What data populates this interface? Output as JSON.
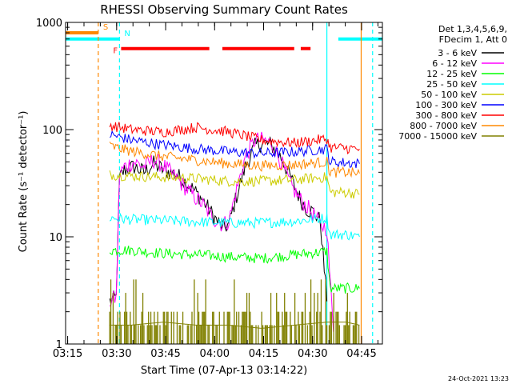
{
  "chart_data": {
    "type": "line",
    "title": "RHESSI Observing Summary Count Rates",
    "xlabel": "Start Time (07-Apr-13 03:14:22)",
    "ylabel": "Count Rate (s⁻¹ detector⁻¹)",
    "y_scale": "log",
    "ylim": [
      1,
      1000
    ],
    "y_ticks": [
      {
        "value": 1,
        "label": "1"
      },
      {
        "value": 10,
        "label": "10"
      },
      {
        "value": 100,
        "label": "100"
      },
      {
        "value": 1000,
        "label": "1000"
      }
    ],
    "x_range_minutes": [
      0,
      97
    ],
    "x_ticks": [
      {
        "value": 0.63,
        "label": "03:15"
      },
      {
        "value": 15.63,
        "label": "03:30"
      },
      {
        "value": 30.63,
        "label": "03:45"
      },
      {
        "value": 45.63,
        "label": "04:00"
      },
      {
        "value": 60.63,
        "label": "04:15"
      },
      {
        "value": 75.63,
        "label": "04:30"
      },
      {
        "value": 90.63,
        "label": "04:45"
      }
    ],
    "legend": {
      "placement": "right",
      "header": [
        "Det 1,3,4,5,6,9,",
        "FDecim 1, Att 0"
      ]
    },
    "series": [
      {
        "name": "3 - 6 keV",
        "color": "#000000",
        "x": [
          13.5,
          15.5,
          16.5,
          18,
          21,
          24,
          27,
          30,
          34,
          38,
          42,
          45,
          48,
          50,
          52,
          55,
          58,
          60,
          63,
          66,
          69,
          72,
          74,
          76,
          78,
          80
        ],
        "y": [
          2.5,
          2.7,
          35,
          42,
          45,
          40,
          48,
          42,
          38,
          30,
          22,
          16,
          12,
          13,
          22,
          45,
          70,
          75,
          72,
          55,
          35,
          22,
          18,
          17,
          14,
          2.5
        ]
      },
      {
        "name": "6 - 12 keV",
        "color": "#ff00ff",
        "x": [
          13.5,
          15.5,
          16.5,
          18,
          21,
          24,
          27,
          30,
          34,
          38,
          42,
          45,
          48,
          50,
          52,
          55,
          58,
          60,
          63,
          66,
          69,
          72,
          74,
          76,
          78,
          80,
          82
        ],
        "y": [
          2.5,
          2.7,
          38,
          45,
          50,
          45,
          52,
          46,
          35,
          26,
          20,
          15,
          13,
          14,
          25,
          55,
          80,
          80,
          75,
          50,
          30,
          22,
          19,
          16,
          13,
          12,
          1.3
        ]
      },
      {
        "name": "12 - 25 keV",
        "color": "#00ff00",
        "x": [
          13.5,
          20,
          30,
          40,
          50,
          60,
          70,
          80,
          81,
          86,
          90
        ],
        "y": [
          7.5,
          7.5,
          7.0,
          6.8,
          6.5,
          6.3,
          6.8,
          7.3,
          3.3,
          3.3,
          3.3
        ]
      },
      {
        "name": "25 - 50 keV",
        "color": "#00ffff",
        "x": [
          13.5,
          20,
          30,
          40,
          50,
          60,
          70,
          80,
          81,
          86,
          90
        ],
        "y": [
          15,
          14.5,
          14.2,
          13.8,
          13.5,
          13.5,
          14,
          15,
          10.5,
          10.5,
          10
        ]
      },
      {
        "name": "50 - 100 keV",
        "color": "#cccc00",
        "x": [
          13.5,
          20,
          30,
          40,
          50,
          60,
          70,
          80,
          81,
          86,
          90
        ],
        "y": [
          38,
          37,
          36,
          35,
          33,
          33,
          34,
          36,
          26,
          26,
          25
        ]
      },
      {
        "name": "100 - 300 keV",
        "color": "#0000ff",
        "x": [
          13.5,
          20,
          30,
          40,
          50,
          60,
          70,
          80,
          81,
          86,
          90
        ],
        "y": [
          90,
          80,
          72,
          66,
          62,
          60,
          62,
          66,
          50,
          49,
          48
        ]
      },
      {
        "name": "300 - 800 keV",
        "color": "#ff0000",
        "x": [
          13.5,
          20,
          30,
          40,
          50,
          60,
          70,
          80,
          81,
          86,
          90
        ],
        "y": [
          110,
          100,
          95,
          105,
          95,
          80,
          75,
          82,
          68,
          67,
          66
        ]
      },
      {
        "name": "800 - 7000 keV",
        "color": "#ff8800",
        "x": [
          13.5,
          20,
          30,
          40,
          50,
          60,
          70,
          80,
          81,
          86,
          90
        ],
        "y": [
          70,
          63,
          56,
          52,
          48,
          46,
          47,
          50,
          40,
          40,
          39
        ]
      },
      {
        "name": "7000 - 15000 keV",
        "color": "#808000",
        "x": [
          13.5,
          20,
          30,
          40,
          50,
          60,
          70,
          80,
          86,
          90
        ],
        "y": [
          1.5,
          1.5,
          1.6,
          1.5,
          1.5,
          1.4,
          1.5,
          1.6,
          1.6,
          1.5
        ]
      }
    ],
    "state_flags": [
      {
        "label": "S",
        "color": "#ff8800",
        "y": 800,
        "segments": [
          [
            0,
            10
          ]
        ],
        "marker_x": 10
      },
      {
        "label": "N",
        "color": "#00ffff",
        "y": 700,
        "segments": [
          [
            0,
            16.5
          ],
          [
            83.5,
            97
          ]
        ],
        "marker_x": 16.5
      },
      {
        "label": "F",
        "color": "#ff0000",
        "y": 570,
        "segments": [
          [
            17,
            44
          ],
          [
            48,
            70
          ],
          [
            72,
            75
          ]
        ],
        "marker_x": 17
      }
    ],
    "vertical_lines": [
      {
        "x": 10,
        "color": "#ff8800",
        "style": "dashed"
      },
      {
        "x": 16.5,
        "color": "#00ffff",
        "style": "dashed"
      },
      {
        "x": 80,
        "color": "#00ffff",
        "style": "solid"
      },
      {
        "x": 90.5,
        "color": "#ff8800",
        "style": "solid"
      },
      {
        "x": 94,
        "color": "#00ffff",
        "style": "dashed"
      }
    ],
    "grid": false
  },
  "footer": {
    "timestamp": "24-Oct-2021 13:23"
  }
}
